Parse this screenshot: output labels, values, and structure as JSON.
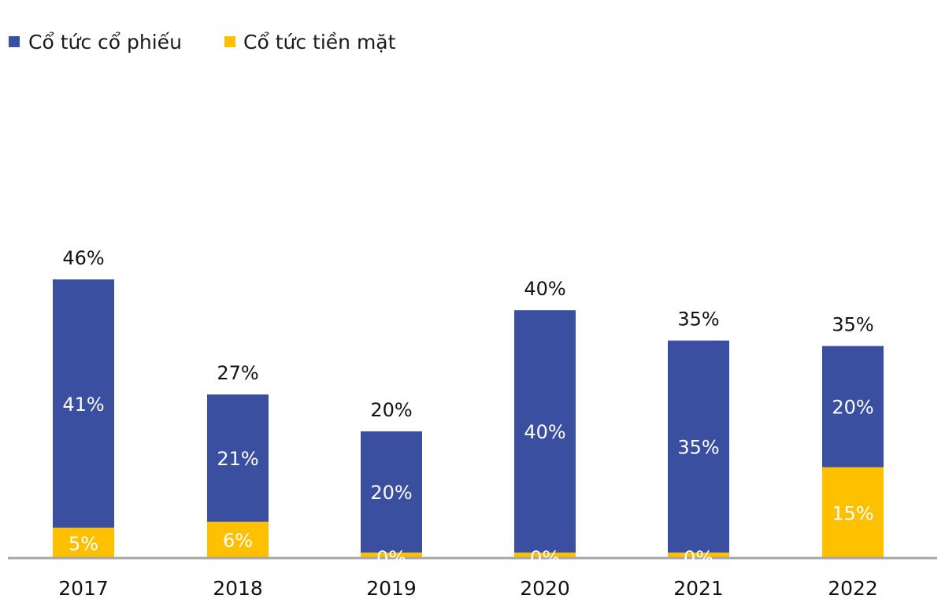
{
  "chart_data": {
    "type": "bar",
    "stacked": true,
    "categories": [
      "2017",
      "2018",
      "2019",
      "2020",
      "2021",
      "2022"
    ],
    "series": [
      {
        "name": "Cổ tức cổ phiếu",
        "color": "#3a4fa0",
        "values": [
          41,
          21,
          20,
          40,
          35,
          20
        ],
        "labels": [
          "41%",
          "21%",
          "20%",
          "40%",
          "35%",
          "20%"
        ]
      },
      {
        "name": "Cổ tức tiền mặt",
        "color": "#ffc000",
        "values": [
          5,
          6,
          0,
          0,
          0,
          15
        ],
        "labels": [
          "5%",
          "6%",
          "0%",
          "0%",
          "0%",
          "15%"
        ]
      }
    ],
    "totals": [
      46,
      27,
      20,
      40,
      35,
      35
    ],
    "total_labels": [
      "46%",
      "27%",
      "20%",
      "40%",
      "35%",
      "35%"
    ],
    "ylim": [
      0,
      46
    ],
    "axis_color": "#a6a6a6",
    "legend_position": "top-left",
    "grid": false
  }
}
